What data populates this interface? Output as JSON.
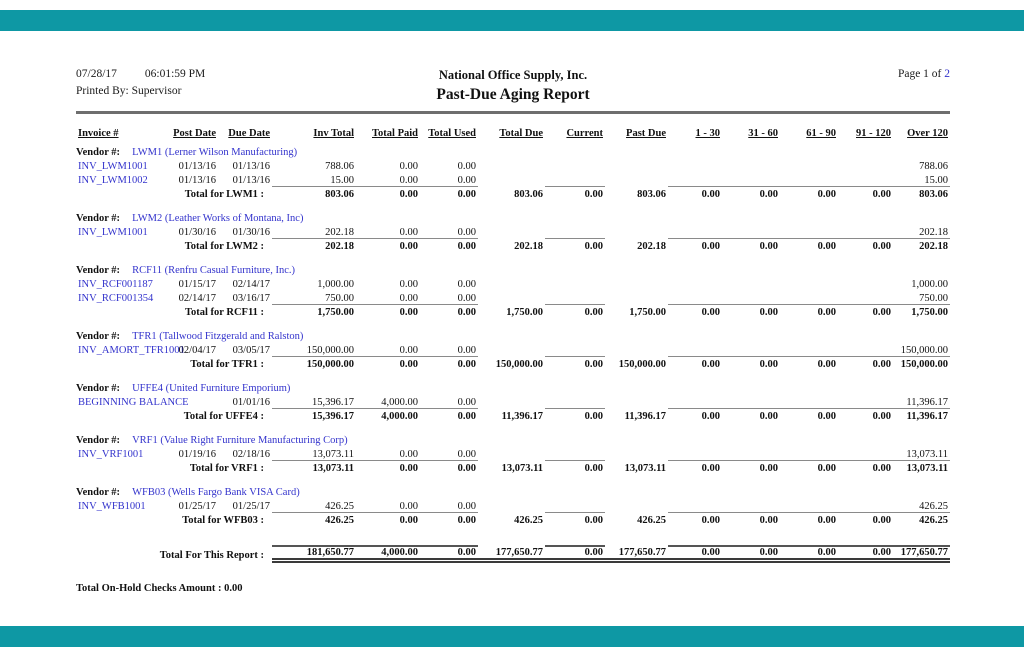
{
  "theme": {
    "accent_teal": "#0e98a4",
    "link_blue": "#3333cc"
  },
  "header": {
    "date": "07/28/17",
    "time": "06:01:59 PM",
    "printed_by": "Printed By: Supervisor",
    "company": "National Office Supply, Inc.",
    "title": "Past-Due Aging Report",
    "page_prefix": "Page 1 of",
    "page_number": "2"
  },
  "table": {
    "columns": [
      "Invoice #",
      "Post Date",
      "Due Date",
      "Inv Total",
      "Total Paid",
      "Total Used",
      "Total Due",
      "Current",
      "Past Due",
      "1 - 30",
      "31 - 60",
      "61 - 90",
      "91 - 120",
      "Over 120"
    ],
    "groups": [
      {
        "vendor_label": "Vendor #:",
        "vendor": "LWM1 (Lerner Wilson Manufacturing)",
        "rows": [
          {
            "invoice": "INV_LWM1001",
            "post": "01/13/16",
            "due": "01/13/16",
            "inv_total": "788.06",
            "paid": "0.00",
            "used": "0.00",
            "over120": "788.06"
          },
          {
            "invoice": "INV_LWM1002",
            "post": "01/13/16",
            "due": "01/13/16",
            "inv_total": "15.00",
            "paid": "0.00",
            "used": "0.00",
            "over120": "15.00"
          }
        ],
        "total_label": "Total for LWM1 :",
        "total": {
          "inv_total": "803.06",
          "paid": "0.00",
          "used": "0.00",
          "due": "803.06",
          "current": "0.00",
          "past_due": "803.06",
          "a1": "0.00",
          "a2": "0.00",
          "a3": "0.00",
          "a4": "0.00",
          "over120": "803.06"
        }
      },
      {
        "vendor_label": "Vendor #:",
        "vendor": "LWM2 (Leather Works of Montana, Inc)",
        "rows": [
          {
            "invoice": "INV_LWM1001",
            "post": "01/30/16",
            "due": "01/30/16",
            "inv_total": "202.18",
            "paid": "0.00",
            "used": "0.00",
            "over120": "202.18"
          }
        ],
        "total_label": "Total for LWM2 :",
        "total": {
          "inv_total": "202.18",
          "paid": "0.00",
          "used": "0.00",
          "due": "202.18",
          "current": "0.00",
          "past_due": "202.18",
          "a1": "0.00",
          "a2": "0.00",
          "a3": "0.00",
          "a4": "0.00",
          "over120": "202.18"
        }
      },
      {
        "vendor_label": "Vendor #:",
        "vendor": "RCF11 (Renfru Casual Furniture, Inc.)",
        "rows": [
          {
            "invoice": "INV_RCF001187",
            "post": "01/15/17",
            "due": "02/14/17",
            "inv_total": "1,000.00",
            "paid": "0.00",
            "used": "0.00",
            "over120": "1,000.00"
          },
          {
            "invoice": "INV_RCF001354",
            "post": "02/14/17",
            "due": "03/16/17",
            "inv_total": "750.00",
            "paid": "0.00",
            "used": "0.00",
            "over120": "750.00"
          }
        ],
        "total_label": "Total for RCF11 :",
        "total": {
          "inv_total": "1,750.00",
          "paid": "0.00",
          "used": "0.00",
          "due": "1,750.00",
          "current": "0.00",
          "past_due": "1,750.00",
          "a1": "0.00",
          "a2": "0.00",
          "a3": "0.00",
          "a4": "0.00",
          "over120": "1,750.00"
        }
      },
      {
        "vendor_label": "Vendor #:",
        "vendor": "TFR1 (Tallwood Fitzgerald and Ralston)",
        "rows": [
          {
            "invoice": "INV_AMORT_TFR1001",
            "post": "02/04/17",
            "due": "03/05/17",
            "inv_total": "150,000.00",
            "paid": "0.00",
            "used": "0.00",
            "over120": "150,000.00"
          }
        ],
        "total_label": "Total for TFR1 :",
        "total": {
          "inv_total": "150,000.00",
          "paid": "0.00",
          "used": "0.00",
          "due": "150,000.00",
          "current": "0.00",
          "past_due": "150,000.00",
          "a1": "0.00",
          "a2": "0.00",
          "a3": "0.00",
          "a4": "0.00",
          "over120": "150,000.00"
        }
      },
      {
        "vendor_label": "Vendor #:",
        "vendor": "UFFE4 (United Furniture Emporium)",
        "rows": [
          {
            "invoice": "BEGINNING BALANCE",
            "post": "",
            "due": "01/01/16",
            "inv_total": "15,396.17",
            "paid": "4,000.00",
            "used": "0.00",
            "over120": "11,396.17"
          }
        ],
        "total_label": "Total for UFFE4 :",
        "total": {
          "inv_total": "15,396.17",
          "paid": "4,000.00",
          "used": "0.00",
          "due": "11,396.17",
          "current": "0.00",
          "past_due": "11,396.17",
          "a1": "0.00",
          "a2": "0.00",
          "a3": "0.00",
          "a4": "0.00",
          "over120": "11,396.17"
        }
      },
      {
        "vendor_label": "Vendor #:",
        "vendor": "VRF1 (Value Right Furniture Manufacturing Corp)",
        "rows": [
          {
            "invoice": "INV_VRF1001",
            "post": "01/19/16",
            "due": "02/18/16",
            "inv_total": "13,073.11",
            "paid": "0.00",
            "used": "0.00",
            "over120": "13,073.11"
          }
        ],
        "total_label": "Total for VRF1 :",
        "total": {
          "inv_total": "13,073.11",
          "paid": "0.00",
          "used": "0.00",
          "due": "13,073.11",
          "current": "0.00",
          "past_due": "13,073.11",
          "a1": "0.00",
          "a2": "0.00",
          "a3": "0.00",
          "a4": "0.00",
          "over120": "13,073.11"
        }
      },
      {
        "vendor_label": "Vendor #:",
        "vendor": "WFB03 (Wells Fargo Bank VISA Card)",
        "rows": [
          {
            "invoice": "INV_WFB1001",
            "post": "01/25/17",
            "due": "01/25/17",
            "inv_total": "426.25",
            "paid": "0.00",
            "used": "0.00",
            "over120": "426.25"
          }
        ],
        "total_label": "Total for WFB03 :",
        "total": {
          "inv_total": "426.25",
          "paid": "0.00",
          "used": "0.00",
          "due": "426.25",
          "current": "0.00",
          "past_due": "426.25",
          "a1": "0.00",
          "a2": "0.00",
          "a3": "0.00",
          "a4": "0.00",
          "over120": "426.25"
        }
      }
    ],
    "report_total_label": "Total For This Report :",
    "report_total": {
      "inv_total": "181,650.77",
      "paid": "4,000.00",
      "used": "0.00",
      "due": "177,650.77",
      "current": "0.00",
      "past_due": "177,650.77",
      "a1": "0.00",
      "a2": "0.00",
      "a3": "0.00",
      "a4": "0.00",
      "over120": "177,650.77"
    },
    "on_hold_label": "Total On-Hold Checks Amount : 0.00"
  }
}
